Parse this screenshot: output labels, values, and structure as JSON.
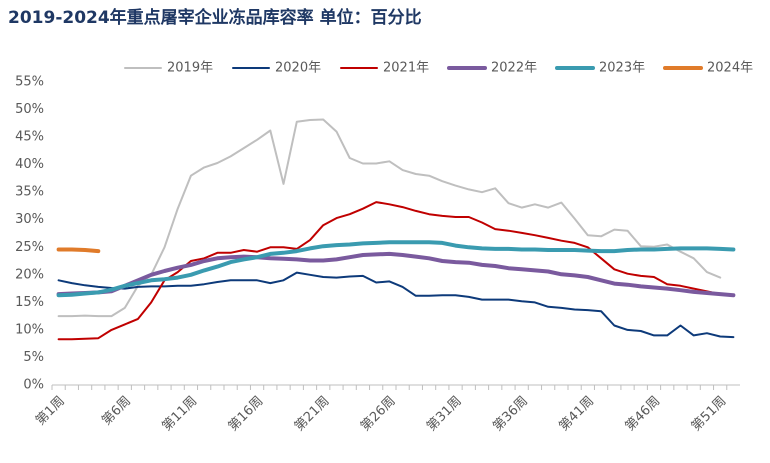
{
  "chart_data": {
    "type": "line",
    "title": "2019-2024年重点屠宰企业冻品库容率 单位：百分比",
    "categories": [
      "第1周",
      null,
      null,
      null,
      null,
      "第6周",
      null,
      null,
      null,
      null,
      "第11周",
      null,
      null,
      null,
      null,
      "第16周",
      null,
      null,
      null,
      null,
      "第21周",
      null,
      null,
      null,
      null,
      "第26周",
      null,
      null,
      null,
      null,
      "第31周",
      null,
      null,
      null,
      null,
      "第36周",
      null,
      null,
      null,
      null,
      "第41周",
      null,
      null,
      null,
      null,
      "第46周",
      null,
      null,
      null,
      null,
      "第51周",
      null
    ],
    "ylim": [
      0,
      55
    ],
    "yticks": [
      {
        "value": 0,
        "label": "0%"
      },
      {
        "value": 5,
        "label": "5%"
      },
      {
        "value": 10,
        "label": "10%"
      },
      {
        "value": 15,
        "label": "15%"
      },
      {
        "value": 20,
        "label": "20%"
      },
      {
        "value": 25,
        "label": "25%"
      },
      {
        "value": 30,
        "label": "30%"
      },
      {
        "value": 35,
        "label": "35%"
      },
      {
        "value": 40,
        "label": "40%"
      },
      {
        "value": 45,
        "label": "45%"
      },
      {
        "value": 50,
        "label": "50%"
      },
      {
        "value": 55,
        "label": "55%"
      }
    ],
    "legend": "top",
    "series": [
      {
        "name": "2019年",
        "color": "#bfbfbf",
        "values": [
          12.5,
          12.5,
          12.6,
          12.5,
          12.5,
          14,
          18,
          20,
          25,
          32,
          38,
          39.5,
          40.3,
          41.5,
          43,
          44.5,
          46.2,
          36.5,
          47.8,
          48.1,
          48.2,
          46,
          41.2,
          40.2,
          40.2,
          40.6,
          39,
          38.3,
          38,
          37,
          36.2,
          35.5,
          35,
          35.7,
          33,
          32.2,
          32.8,
          32.2,
          33.1,
          30.2,
          27.2,
          27,
          28.2,
          28,
          25.2,
          25.1,
          25.5,
          24.2,
          23,
          20.5,
          19.5,
          null
        ]
      },
      {
        "name": "2020年",
        "color": "#0d3a7a",
        "values": [
          19,
          18.5,
          18.1,
          17.8,
          17.6,
          17.5,
          17.8,
          17.9,
          17.9,
          18,
          18,
          18.3,
          18.7,
          19,
          19,
          19,
          18.5,
          19,
          20.4,
          20,
          19.6,
          19.5,
          19.7,
          19.8,
          18.6,
          18.8,
          17.8,
          16.2,
          16.2,
          16.3,
          16.3,
          16,
          15.5,
          15.5,
          15.5,
          15.2,
          15,
          14.2,
          14,
          13.7,
          13.6,
          13.4,
          10.8,
          10,
          9.8,
          9,
          9,
          10.8,
          9,
          9.4,
          8.8,
          8.7
        ]
      },
      {
        "name": "2021年",
        "color": "#c00000",
        "values": [
          8.3,
          8.3,
          8.4,
          8.5,
          10,
          11,
          12,
          15,
          19,
          20.5,
          22.5,
          23,
          24,
          24,
          24.5,
          24.2,
          25,
          25,
          24.7,
          26.3,
          29,
          30.3,
          31,
          32,
          33.2,
          32.8,
          32.3,
          31.6,
          31,
          30.7,
          30.5,
          30.5,
          29.5,
          28.3,
          28,
          27.6,
          27.2,
          26.7,
          26.2,
          25.8,
          25,
          23,
          21,
          20.2,
          19.8,
          19.6,
          18.3,
          18,
          17.5,
          17,
          16.5,
          16.3
        ]
      },
      {
        "name": "2022年",
        "color": "#7a5a9e",
        "values": [
          16.5,
          16.6,
          16.7,
          16.8,
          17,
          18,
          19,
          20,
          20.7,
          21.3,
          21.8,
          22.5,
          23,
          23.2,
          23.3,
          23.2,
          23,
          22.9,
          22.8,
          22.6,
          22.6,
          22.8,
          23.2,
          23.6,
          23.7,
          23.8,
          23.6,
          23.3,
          23,
          22.5,
          22.3,
          22.2,
          21.8,
          21.6,
          21.2,
          21,
          20.8,
          20.6,
          20.1,
          19.9,
          19.6,
          19,
          18.4,
          18.2,
          17.9,
          17.7,
          17.5,
          17.2,
          16.9,
          16.7,
          16.5,
          16.3
        ]
      },
      {
        "name": "2023年",
        "color": "#3a9bb0",
        "values": [
          16.3,
          16.4,
          16.6,
          16.8,
          17.3,
          18,
          18.5,
          19,
          19.2,
          19.5,
          20,
          20.8,
          21.5,
          22.3,
          22.8,
          23.2,
          23.8,
          24,
          24.3,
          24.8,
          25.2,
          25.4,
          25.5,
          25.7,
          25.8,
          25.9,
          25.9,
          25.9,
          25.9,
          25.8,
          25.3,
          25,
          24.8,
          24.7,
          24.7,
          24.6,
          24.6,
          24.5,
          24.5,
          24.5,
          24.4,
          24.3,
          24.3,
          24.5,
          24.6,
          24.6,
          24.7,
          24.8,
          24.8,
          24.8,
          24.7,
          24.6
        ]
      },
      {
        "name": "2024年",
        "color": "#e07b2a",
        "values": [
          24.6,
          24.6,
          24.5,
          24.3,
          null,
          null,
          null,
          null,
          null,
          null,
          null,
          null,
          null,
          null,
          null,
          null,
          null,
          null,
          null,
          null,
          null,
          null,
          null,
          null,
          null,
          null,
          null,
          null,
          null,
          null,
          null,
          null,
          null,
          null,
          null,
          null,
          null,
          null,
          null,
          null,
          null,
          null,
          null,
          null,
          null,
          null,
          null,
          null,
          null,
          null,
          null,
          null
        ]
      }
    ]
  }
}
